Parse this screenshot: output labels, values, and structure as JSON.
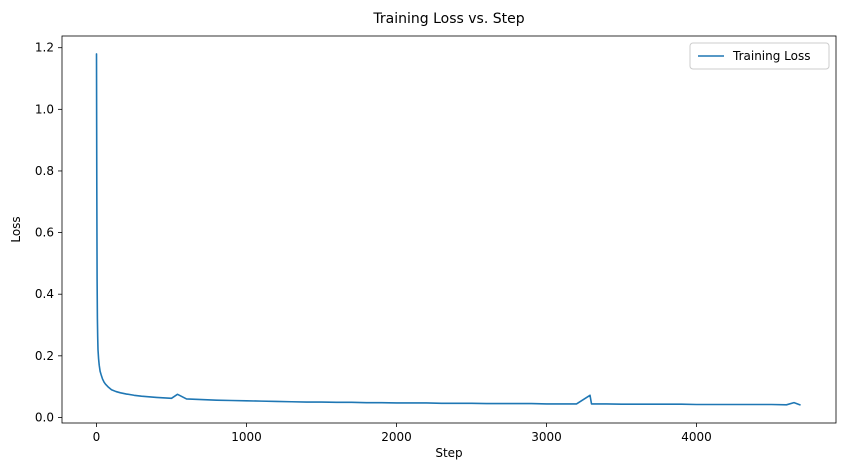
{
  "chart_data": {
    "type": "line",
    "title": "Training Loss vs. Step",
    "xlabel": "Step",
    "ylabel": "Loss",
    "xlim": [
      -230,
      4930
    ],
    "ylim": [
      -0.018,
      1.238
    ],
    "xticks": [
      0,
      1000,
      2000,
      3000,
      4000
    ],
    "yticks": [
      0.0,
      0.2,
      0.4,
      0.6,
      0.8,
      1.0,
      1.2
    ],
    "ytick_labels": [
      "0.0",
      "0.2",
      "0.4",
      "0.6",
      "0.8",
      "1.0",
      "1.2"
    ],
    "grid": false,
    "legend": {
      "position": "top-right"
    },
    "series": [
      {
        "name": "Training Loss",
        "color": "#1f77b4",
        "x": [
          0,
          2,
          4,
          6,
          8,
          10,
          14,
          18,
          24,
          30,
          40,
          50,
          60,
          80,
          100,
          130,
          160,
          200,
          250,
          300,
          400,
          500,
          540,
          600,
          700,
          800,
          900,
          1000,
          1100,
          1200,
          1300,
          1400,
          1500,
          1600,
          1700,
          1800,
          1900,
          2000,
          2100,
          2200,
          2300,
          2400,
          2500,
          2600,
          2700,
          2800,
          2900,
          3000,
          3100,
          3200,
          3290,
          3300,
          3400,
          3500,
          3600,
          3700,
          3800,
          3900,
          4000,
          4100,
          4200,
          4300,
          4400,
          4500,
          4600,
          4650,
          4690
        ],
        "y": [
          1.18,
          0.75,
          0.45,
          0.32,
          0.26,
          0.22,
          0.19,
          0.17,
          0.15,
          0.14,
          0.125,
          0.115,
          0.108,
          0.098,
          0.09,
          0.084,
          0.08,
          0.076,
          0.072,
          0.069,
          0.065,
          0.062,
          0.075,
          0.06,
          0.058,
          0.056,
          0.055,
          0.054,
          0.053,
          0.052,
          0.051,
          0.05,
          0.05,
          0.049,
          0.049,
          0.048,
          0.048,
          0.047,
          0.047,
          0.047,
          0.046,
          0.046,
          0.046,
          0.045,
          0.045,
          0.045,
          0.045,
          0.044,
          0.044,
          0.044,
          0.072,
          0.044,
          0.044,
          0.043,
          0.043,
          0.043,
          0.043,
          0.043,
          0.042,
          0.042,
          0.042,
          0.042,
          0.042,
          0.042,
          0.041,
          0.048,
          0.041
        ]
      }
    ]
  }
}
